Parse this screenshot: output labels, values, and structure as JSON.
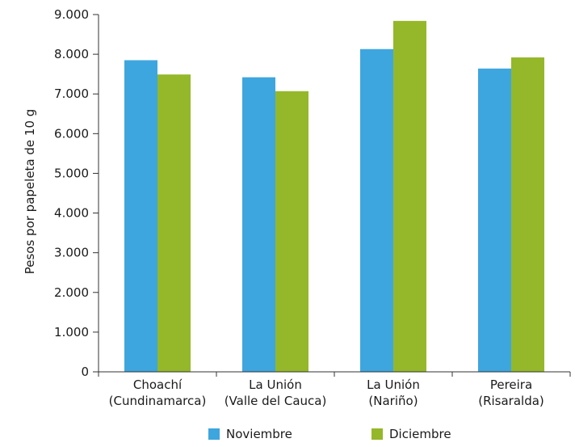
{
  "chart_data": {
    "type": "bar",
    "ylabel": "Pesos por papeleta de 10 g",
    "xlabel": "",
    "ylim": [
      0,
      9000
    ],
    "yticks": [
      0,
      1000,
      2000,
      3000,
      4000,
      5000,
      6000,
      7000,
      8000,
      9000
    ],
    "ytick_labels": [
      "0",
      "1.000",
      "2.000",
      "3.000",
      "4.000",
      "5.000",
      "6.000",
      "7.000",
      "8.000",
      "9.000"
    ],
    "categories": [
      [
        "Choachí",
        "(Cundinamarca)"
      ],
      [
        "La Unión",
        "(Valle del Cauca)"
      ],
      [
        "La Unión",
        "(Nariño)"
      ],
      [
        "Pereira",
        "(Risaralda)"
      ]
    ],
    "series": [
      {
        "name": "Noviembre",
        "color": "#3ea6de",
        "values": [
          7850,
          7420,
          8130,
          7640
        ]
      },
      {
        "name": "Diciembre",
        "color": "#94b829",
        "values": [
          7490,
          7070,
          8840,
          7920
        ]
      }
    ],
    "grid": false,
    "legend_position": "bottom"
  }
}
